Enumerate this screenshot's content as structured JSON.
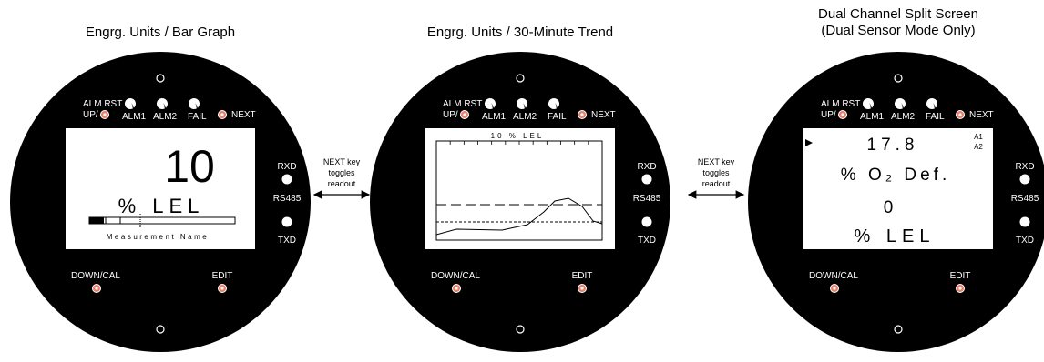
{
  "panels": [
    {
      "title_lines": [
        "Engrg. Units / Bar Graph"
      ],
      "mode": "bar_graph",
      "display": {
        "value": "10",
        "unit": "% LEL",
        "bar_fill_fraction": 0.1,
        "bar_label": "Measurement Name"
      }
    },
    {
      "title_lines": [
        "Engrg. Units / 30-Minute Trend"
      ],
      "mode": "trend",
      "display": {
        "header": "10 % LEL"
      }
    },
    {
      "title_lines": [
        "Dual Channel Split Screen",
        "(Dual Sensor Mode Only)"
      ],
      "mode": "split",
      "display": {
        "value1": "17.8",
        "unit1": "% O₂ Def.",
        "value2": "0",
        "unit2": "% LEL",
        "ch1": "A1",
        "ch2": "A2"
      }
    }
  ],
  "controls": {
    "alm_rst": "ALM RST",
    "up": "UP/",
    "alm1": "ALM1",
    "alm2": "ALM2",
    "fail": "FAIL",
    "next": "NEXT",
    "rxd": "RXD",
    "rs485": "RS485",
    "txd": "TXD",
    "down_cal": "DOWN/CAL",
    "edit": "EDIT"
  },
  "connector_label_lines": [
    "NEXT key",
    "toggles",
    "readout"
  ],
  "colors": {
    "body": "#000000",
    "screen": "#ffffff",
    "button": "#e8806a",
    "led": "#ffffff"
  }
}
